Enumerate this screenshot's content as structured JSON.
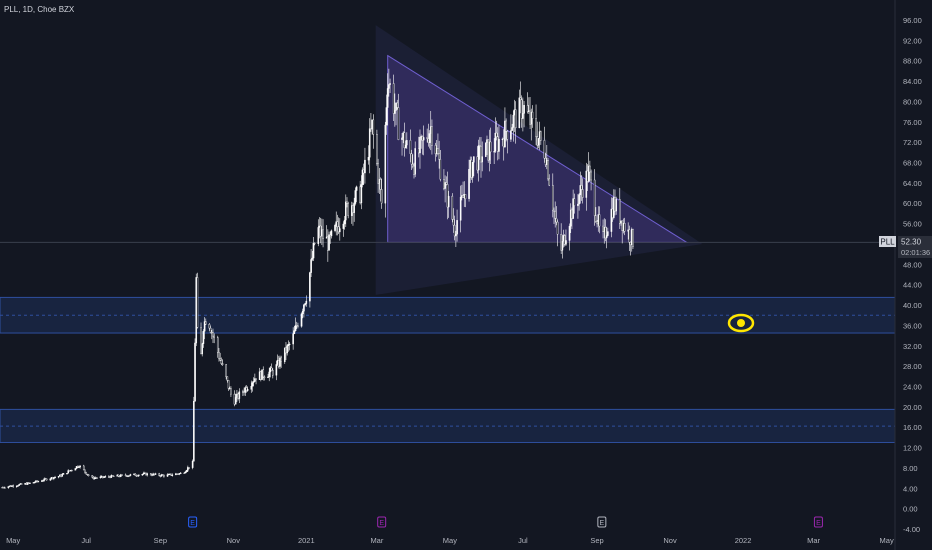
{
  "header": {
    "title": "PLL, 1D, Choe BZX"
  },
  "price_tag": {
    "symbol": "PLL",
    "price": "52.30",
    "countdown": "02:01:36"
  },
  "eye_icon": "eye-icon",
  "colors": {
    "background": "#131722",
    "candle": "#ffffff",
    "triangle_fill": "#4b3a8c",
    "triangle_stroke": "#6f5fd0",
    "zone_fill": "#1e2f5a",
    "zone_stroke": "#2e4f9e",
    "eye": "#ffe600",
    "axis_text": "#b2b5be"
  },
  "chart_data": {
    "type": "candlestick",
    "title": "PLL, 1D, Choe BZX",
    "ylim": [
      -4,
      96
    ],
    "y_ticks": [
      "96.00",
      "92.00",
      "88.00",
      "84.00",
      "80.00",
      "76.00",
      "72.00",
      "68.00",
      "64.00",
      "60.00",
      "56.00",
      "52.00",
      "48.00",
      "44.00",
      "40.00",
      "36.00",
      "32.00",
      "28.00",
      "24.00",
      "20.00",
      "16.00",
      "12.00",
      "8.00",
      "4.00",
      "0.00",
      "-4.00"
    ],
    "x_ticks": [
      "May",
      "Jul",
      "Sep",
      "Nov",
      "2021",
      "Mar",
      "May",
      "Jul",
      "Sep",
      "Nov",
      "2022",
      "Mar",
      "May"
    ],
    "x_range": [
      "2020-04-20",
      "2022-05-08"
    ],
    "last_price": 52.3,
    "price_path": [
      [
        "2020-04-22",
        4.2
      ],
      [
        "2020-05-15",
        5.0
      ],
      [
        "2020-06-10",
        6.5
      ],
      [
        "2020-06-25",
        8.5
      ],
      [
        "2020-07-05",
        6.0
      ],
      [
        "2020-08-01",
        6.5
      ],
      [
        "2020-08-20",
        6.8
      ],
      [
        "2020-09-05",
        6.5
      ],
      [
        "2020-09-20",
        7.0
      ],
      [
        "2020-09-28",
        9.0
      ],
      [
        "2020-10-01",
        45.0
      ],
      [
        "2020-10-03",
        24.0
      ],
      [
        "2020-10-07",
        36.0
      ],
      [
        "2020-10-10",
        38.0
      ],
      [
        "2020-10-20",
        30.0
      ],
      [
        "2020-11-01",
        21.0
      ],
      [
        "2020-11-20",
        26.0
      ],
      [
        "2020-12-05",
        27.0
      ],
      [
        "2020-12-20",
        33.0
      ],
      [
        "2021-01-01",
        42.0
      ],
      [
        "2021-01-10",
        55.0
      ],
      [
        "2021-01-20",
        52.0
      ],
      [
        "2021-02-01",
        58.0
      ],
      [
        "2021-02-15",
        62.0
      ],
      [
        "2021-02-25",
        75.0
      ],
      [
        "2021-03-05",
        60.0
      ],
      [
        "2021-03-10",
        85.0
      ],
      [
        "2021-03-20",
        74.0
      ],
      [
        "2021-04-01",
        68.0
      ],
      [
        "2021-04-15",
        75.0
      ],
      [
        "2021-05-05",
        55.0
      ],
      [
        "2021-05-20",
        68.0
      ],
      [
        "2021-06-10",
        72.0
      ],
      [
        "2021-07-01",
        79.0
      ],
      [
        "2021-07-20",
        70.0
      ],
      [
        "2021-08-01",
        50.0
      ],
      [
        "2021-08-10",
        58.0
      ],
      [
        "2021-08-25",
        66.0
      ],
      [
        "2021-09-05",
        52.0
      ],
      [
        "2021-09-15",
        60.0
      ],
      [
        "2021-09-25",
        55.0
      ],
      [
        "2021-10-02",
        52.3
      ]
    ],
    "triangles": [
      {
        "name": "outer-triangle",
        "points": [
          [
            "2021-02-28",
            95
          ],
          [
            "2021-11-28",
            52
          ],
          [
            "2021-02-28",
            42
          ]
        ]
      },
      {
        "name": "inner-triangle",
        "points": [
          [
            "2021-03-10",
            89
          ],
          [
            "2021-11-15",
            52.3
          ],
          [
            "2021-03-10",
            52.3
          ]
        ]
      }
    ],
    "zones": [
      {
        "name": "upper-zone",
        "from": 34.5,
        "to": 41.5,
        "mid": 38
      },
      {
        "name": "lower-zone",
        "from": 13.0,
        "to": 19.5,
        "mid": 16.2
      }
    ],
    "events": [
      {
        "date": "2020-09-28",
        "label": "E",
        "color": "#2962ff"
      },
      {
        "date": "2021-03-05",
        "label": "E",
        "color": "#9c27b0"
      },
      {
        "date": "2021-09-05",
        "label": "E",
        "color": "#b2b5be"
      },
      {
        "date": "2022-03-05",
        "label": "E",
        "color": "#9c27b0"
      }
    ]
  }
}
